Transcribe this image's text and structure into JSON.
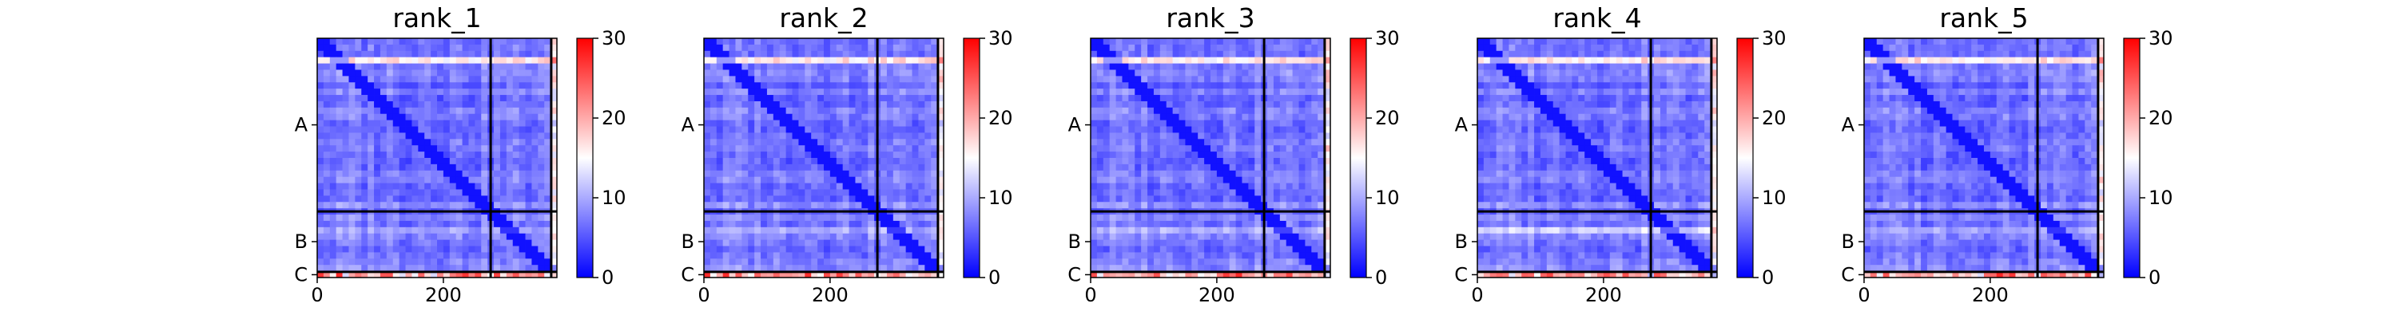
{
  "chart_data": {
    "type": "heatmap",
    "colormap": [
      "#0000ff",
      "#ffffff",
      "#ff0000"
    ],
    "colorbar": {
      "min": 0,
      "max": 30,
      "ticks": [
        0,
        10,
        20,
        30
      ]
    },
    "axis_extent": [
      0,
      380
    ],
    "x_ticks": [
      0,
      200
    ],
    "y_chain_labels": [
      "A",
      "B",
      "C"
    ],
    "chain_boundaries": [
      275,
      371
    ],
    "panels": [
      {
        "title": "rank_1",
        "bright_row": 0.25
      },
      {
        "title": "rank_2",
        "bright_row": 0.3
      },
      {
        "title": "rank_3",
        "bright_row": 0.35
      },
      {
        "title": "rank_4",
        "bright_row": 0.6
      },
      {
        "title": "rank_5",
        "bright_row": 0.25
      }
    ]
  }
}
